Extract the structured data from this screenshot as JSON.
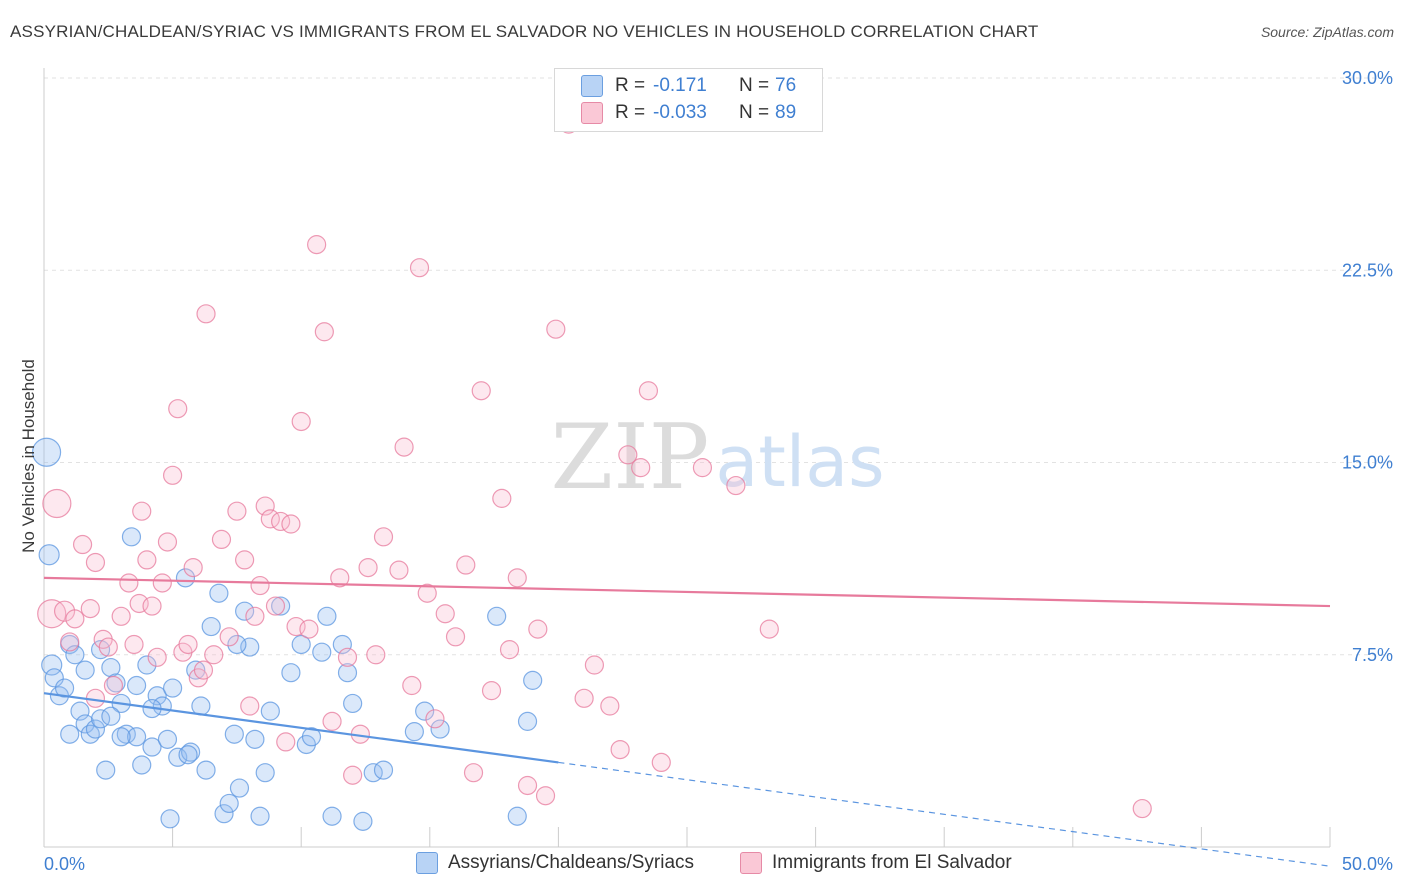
{
  "title": "ASSYRIAN/CHALDEAN/SYRIAC VS IMMIGRANTS FROM EL SALVADOR NO VEHICLES IN HOUSEHOLD CORRELATION CHART",
  "source": "Source: ZipAtlas.com",
  "watermark": {
    "zip": "ZIP",
    "atlas": "atlas"
  },
  "legend": {
    "r_label": "R =",
    "n_label": "N =",
    "rows": [
      {
        "r": "-0.171",
        "n": "76",
        "color": "#b8d3f5",
        "border": "#6b9fe0"
      },
      {
        "r": "-0.033",
        "n": "89",
        "color": "#fac8d6",
        "border": "#e68aa6"
      }
    ]
  },
  "chart_data": {
    "type": "scatter",
    "title": "ASSYRIAN/CHALDEAN/SYRIAC VS IMMIGRANTS FROM EL SALVADOR NO VEHICLES IN HOUSEHOLD CORRELATION CHART",
    "xlabel": "",
    "ylabel": "No Vehicles in Household",
    "xlim": [
      0,
      50
    ],
    "ylim": [
      0,
      30
    ],
    "x_tick_labels": [
      "0.0%",
      "50.0%"
    ],
    "y_ticks": [
      7.5,
      15,
      22.5,
      30
    ],
    "y_tick_labels": [
      "7.5%",
      "15.0%",
      "22.5%",
      "30.0%"
    ],
    "series": [
      {
        "name": "Assyrians/Chaldeans/Syriacs",
        "color": "#5b95e0",
        "fill": "rgba(150,190,240,0.35)",
        "trend": {
          "x0": 0,
          "y0": 6.0,
          "x1": 20,
          "y1": 3.3,
          "dash_to_x": 50
        },
        "points": [
          [
            0.1,
            15.4,
            14
          ],
          [
            0.2,
            11.4,
            10
          ],
          [
            0.3,
            7.1,
            10
          ],
          [
            0.4,
            6.6,
            9
          ],
          [
            0.6,
            5.9,
            9
          ],
          [
            0.8,
            6.2,
            9
          ],
          [
            1.0,
            7.9,
            9
          ],
          [
            1.2,
            7.5,
            9
          ],
          [
            1.4,
            5.3,
            9
          ],
          [
            1.6,
            4.8,
            9
          ],
          [
            1.8,
            4.4,
            9
          ],
          [
            2.0,
            4.6,
            9
          ],
          [
            2.2,
            5.0,
            9
          ],
          [
            2.4,
            3.0,
            9
          ],
          [
            2.6,
            7.0,
            9
          ],
          [
            2.8,
            6.4,
            9
          ],
          [
            3.0,
            5.6,
            9
          ],
          [
            3.2,
            4.4,
            9
          ],
          [
            3.4,
            12.1,
            9
          ],
          [
            3.6,
            4.3,
            9
          ],
          [
            3.8,
            3.2,
            9
          ],
          [
            4.0,
            7.1,
            9
          ],
          [
            4.2,
            3.9,
            9
          ],
          [
            4.4,
            5.9,
            9
          ],
          [
            4.6,
            5.5,
            9
          ],
          [
            4.8,
            4.2,
            9
          ],
          [
            5.0,
            6.2,
            9
          ],
          [
            5.2,
            3.5,
            9
          ],
          [
            5.5,
            10.5,
            9
          ],
          [
            5.7,
            3.7,
            9
          ],
          [
            5.9,
            6.9,
            9
          ],
          [
            6.1,
            5.5,
            9
          ],
          [
            6.3,
            3.0,
            9
          ],
          [
            6.5,
            8.6,
            9
          ],
          [
            6.8,
            9.9,
            9
          ],
          [
            7.0,
            1.3,
            9
          ],
          [
            7.2,
            1.7,
            9
          ],
          [
            7.4,
            4.4,
            9
          ],
          [
            7.6,
            2.3,
            9
          ],
          [
            7.8,
            9.2,
            9
          ],
          [
            8.0,
            7.8,
            9
          ],
          [
            8.2,
            4.2,
            9
          ],
          [
            8.4,
            1.2,
            9
          ],
          [
            8.6,
            2.9,
            9
          ],
          [
            8.8,
            5.3,
            9
          ],
          [
            9.2,
            9.4,
            9
          ],
          [
            9.6,
            6.8,
            9
          ],
          [
            10.0,
            7.9,
            9
          ],
          [
            10.2,
            4.0,
            9
          ],
          [
            10.4,
            4.3,
            9
          ],
          [
            10.8,
            7.6,
            9
          ],
          [
            11.0,
            9.0,
            9
          ],
          [
            11.2,
            1.2,
            9
          ],
          [
            11.6,
            7.9,
            9
          ],
          [
            11.8,
            6.8,
            9
          ],
          [
            12.0,
            5.6,
            9
          ],
          [
            12.4,
            1.0,
            9
          ],
          [
            12.8,
            2.9,
            9
          ],
          [
            13.2,
            3.0,
            9
          ],
          [
            14.4,
            4.5,
            9
          ],
          [
            14.8,
            5.3,
            9
          ],
          [
            15.4,
            4.6,
            9
          ],
          [
            17.6,
            9.0,
            9
          ],
          [
            18.4,
            1.2,
            9
          ],
          [
            19.0,
            6.5,
            9
          ],
          [
            1.0,
            4.4,
            9
          ],
          [
            1.6,
            6.9,
            9
          ],
          [
            2.2,
            7.7,
            9
          ],
          [
            2.6,
            5.1,
            9
          ],
          [
            3.0,
            4.3,
            9
          ],
          [
            3.6,
            6.3,
            9
          ],
          [
            4.2,
            5.4,
            9
          ],
          [
            4.9,
            1.1,
            9
          ],
          [
            5.6,
            3.6,
            9
          ],
          [
            7.5,
            7.9,
            9
          ],
          [
            18.8,
            4.9,
            9
          ]
        ]
      },
      {
        "name": "Immigrants from El Salvador",
        "color": "#e77a9c",
        "fill": "rgba(250,190,210,0.35)",
        "trend": {
          "x0": 0,
          "y0": 10.5,
          "x1": 50,
          "y1": 9.4
        },
        "points": [
          [
            0.3,
            9.1,
            14
          ],
          [
            0.5,
            13.4,
            14
          ],
          [
            0.8,
            9.2,
            10
          ],
          [
            1.0,
            8.0,
            9
          ],
          [
            1.2,
            8.9,
            9
          ],
          [
            1.5,
            11.8,
            9
          ],
          [
            1.8,
            9.3,
            9
          ],
          [
            2.0,
            11.1,
            9
          ],
          [
            2.3,
            8.1,
            9
          ],
          [
            2.5,
            7.8,
            9
          ],
          [
            2.7,
            6.3,
            9
          ],
          [
            3.0,
            9.0,
            9
          ],
          [
            3.3,
            10.3,
            9
          ],
          [
            3.5,
            7.9,
            9
          ],
          [
            3.7,
            9.5,
            9
          ],
          [
            4.0,
            11.2,
            9
          ],
          [
            4.2,
            9.4,
            9
          ],
          [
            4.4,
            7.4,
            9
          ],
          [
            4.6,
            10.3,
            9
          ],
          [
            4.8,
            11.9,
            9
          ],
          [
            5.0,
            14.5,
            9
          ],
          [
            5.2,
            17.1,
            9
          ],
          [
            5.4,
            7.6,
            9
          ],
          [
            5.6,
            7.9,
            9
          ],
          [
            5.8,
            10.9,
            9
          ],
          [
            6.0,
            6.6,
            9
          ],
          [
            6.3,
            20.8,
            9
          ],
          [
            6.6,
            7.5,
            9
          ],
          [
            6.9,
            12.0,
            9
          ],
          [
            7.2,
            8.2,
            9
          ],
          [
            7.5,
            13.1,
            9
          ],
          [
            7.8,
            11.2,
            9
          ],
          [
            8.0,
            5.5,
            9
          ],
          [
            8.2,
            9.0,
            9
          ],
          [
            8.4,
            10.2,
            9
          ],
          [
            8.6,
            13.3,
            9
          ],
          [
            8.8,
            12.8,
            9
          ],
          [
            9.0,
            9.4,
            9
          ],
          [
            9.2,
            12.7,
            9
          ],
          [
            9.4,
            4.1,
            9
          ],
          [
            9.6,
            12.6,
            9
          ],
          [
            9.8,
            8.6,
            9
          ],
          [
            10.0,
            16.6,
            9
          ],
          [
            10.3,
            8.5,
            9
          ],
          [
            10.6,
            23.5,
            9
          ],
          [
            10.9,
            20.1,
            9
          ],
          [
            11.2,
            4.9,
            9
          ],
          [
            11.5,
            10.5,
            9
          ],
          [
            11.8,
            7.4,
            9
          ],
          [
            12.0,
            2.8,
            9
          ],
          [
            12.3,
            4.4,
            9
          ],
          [
            12.6,
            10.9,
            9
          ],
          [
            12.9,
            7.5,
            9
          ],
          [
            13.2,
            12.1,
            9
          ],
          [
            13.8,
            10.8,
            9
          ],
          [
            14.0,
            15.6,
            9
          ],
          [
            14.3,
            6.3,
            9
          ],
          [
            14.6,
            22.6,
            9
          ],
          [
            14.9,
            9.9,
            9
          ],
          [
            15.2,
            5.0,
            9
          ],
          [
            15.6,
            9.1,
            9
          ],
          [
            16.0,
            8.2,
            9
          ],
          [
            16.4,
            11.0,
            9
          ],
          [
            16.7,
            2.9,
            9
          ],
          [
            17.0,
            17.8,
            9
          ],
          [
            17.4,
            6.1,
            9
          ],
          [
            17.8,
            13.6,
            9
          ],
          [
            18.1,
            7.7,
            9
          ],
          [
            18.4,
            10.5,
            9
          ],
          [
            18.8,
            2.4,
            9
          ],
          [
            19.2,
            8.5,
            9
          ],
          [
            19.5,
            2.0,
            9
          ],
          [
            19.9,
            20.2,
            9
          ],
          [
            20.4,
            28.2,
            9
          ],
          [
            21.0,
            5.8,
            9
          ],
          [
            21.4,
            7.1,
            9
          ],
          [
            22.0,
            5.5,
            9
          ],
          [
            22.4,
            3.8,
            9
          ],
          [
            22.7,
            15.3,
            9
          ],
          [
            23.2,
            14.8,
            9
          ],
          [
            23.5,
            17.8,
            9
          ],
          [
            25.6,
            14.8,
            9
          ],
          [
            26.9,
            14.1,
            9
          ],
          [
            24.0,
            3.3,
            9
          ],
          [
            28.2,
            8.5,
            9
          ],
          [
            42.7,
            1.5,
            9
          ],
          [
            6.2,
            6.9,
            9
          ],
          [
            3.8,
            13.1,
            9
          ],
          [
            2.0,
            5.8,
            9
          ]
        ]
      }
    ]
  },
  "bottom_legend": [
    {
      "label": "Assyrians/Chaldeans/Syriacs",
      "color": "#b8d3f5",
      "border": "#6b9fe0"
    },
    {
      "label": "Immigrants from El Salvador",
      "color": "#fac8d6",
      "border": "#e68aa6"
    }
  ]
}
